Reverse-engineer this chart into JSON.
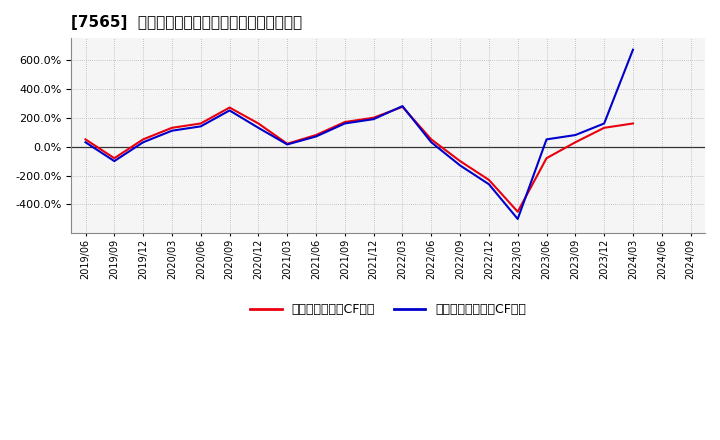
{
  "title": "[7565]  有利子負債キャッシュフロー比率の推移",
  "x_labels": [
    "2019/06",
    "2019/09",
    "2019/12",
    "2020/03",
    "2020/06",
    "2020/09",
    "2020/12",
    "2021/03",
    "2021/06",
    "2021/09",
    "2021/12",
    "2022/03",
    "2022/06",
    "2022/09",
    "2022/12",
    "2023/03",
    "2023/06",
    "2023/09",
    "2023/12",
    "2024/03",
    "2024/06",
    "2024/09"
  ],
  "operating_cf_ratio": [
    50,
    -80,
    50,
    130,
    160,
    270,
    160,
    20,
    80,
    170,
    200,
    275,
    50,
    -100,
    -230,
    -450,
    -80,
    30,
    130,
    160,
    null,
    null
  ],
  "free_cf_ratio": [
    30,
    -100,
    30,
    110,
    140,
    250,
    130,
    15,
    70,
    160,
    190,
    280,
    30,
    -130,
    -260,
    -500,
    50,
    80,
    160,
    670,
    null,
    null
  ],
  "operating_color": "#e8000d",
  "free_color": "#0000cc",
  "bg_color": "#ffffff",
  "plot_bg_color": "#f5f5f5",
  "grid_color": "#999999",
  "ylim": [
    -600,
    750
  ],
  "yticks": [
    -400,
    -200,
    0,
    200,
    400,
    600
  ],
  "legend_label_op": "有利子負債営業CF比率",
  "legend_label_free": "有利子負債フリーCF比率"
}
